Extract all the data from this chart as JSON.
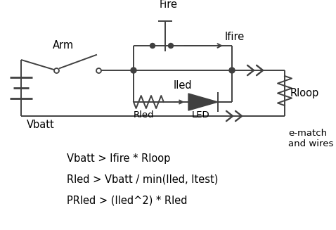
{
  "bg_color": "#ffffff",
  "line_color": "#404040",
  "line_width": 1.4,
  "formulas": [
    "Vbatt > Ifire * Rloop",
    "Rled > Vbatt / min(Iled, Itest)",
    "PRled > (Iled^2) * Rled"
  ]
}
